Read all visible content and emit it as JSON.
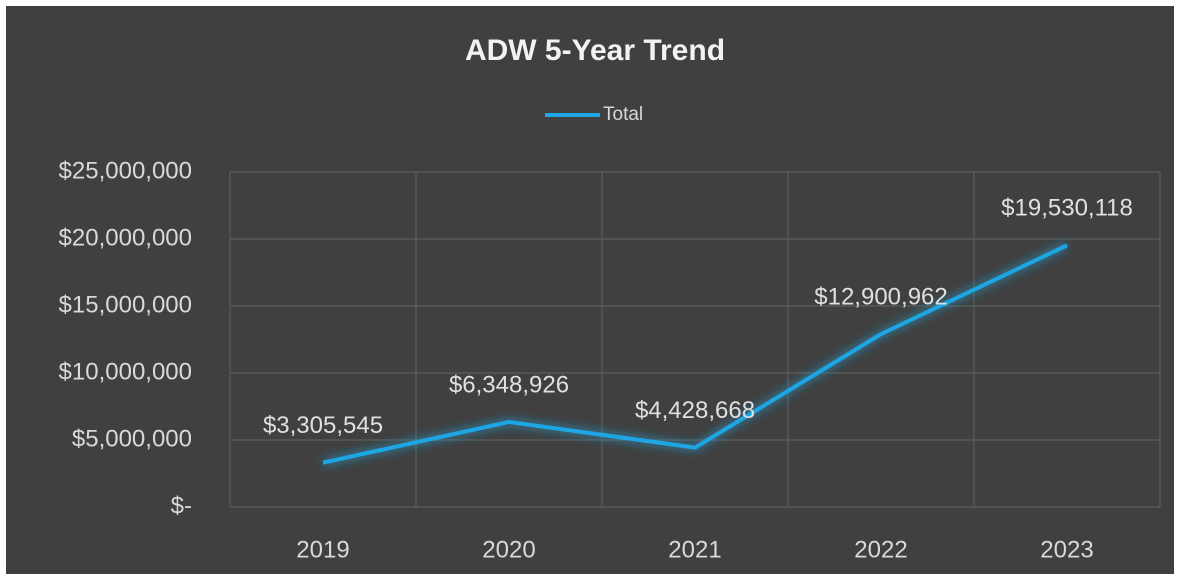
{
  "chart_data": {
    "type": "line",
    "title": "ADW 5-Year Trend",
    "categories": [
      "2019",
      "2020",
      "2021",
      "2022",
      "2023"
    ],
    "series": [
      {
        "name": "Total",
        "color": "#1ea7e4",
        "values": [
          3305545,
          6348926,
          4428668,
          12900962,
          19530118
        ],
        "value_labels": [
          "$3,305,545",
          "$6,348,926",
          "$4,428,668",
          "$12,900,962",
          "$19,530,118"
        ]
      }
    ],
    "ylim": [
      0,
      25000000
    ],
    "yticks": [
      {
        "value": 0,
        "label": "$-"
      },
      {
        "value": 5000000,
        "label": "$5,000,000"
      },
      {
        "value": 10000000,
        "label": "$10,000,000"
      },
      {
        "value": 15000000,
        "label": "$15,000,000"
      },
      {
        "value": 20000000,
        "label": "$20,000,000"
      },
      {
        "value": 25000000,
        "label": "$25,000,000"
      }
    ],
    "grid": true,
    "legend": "top"
  }
}
